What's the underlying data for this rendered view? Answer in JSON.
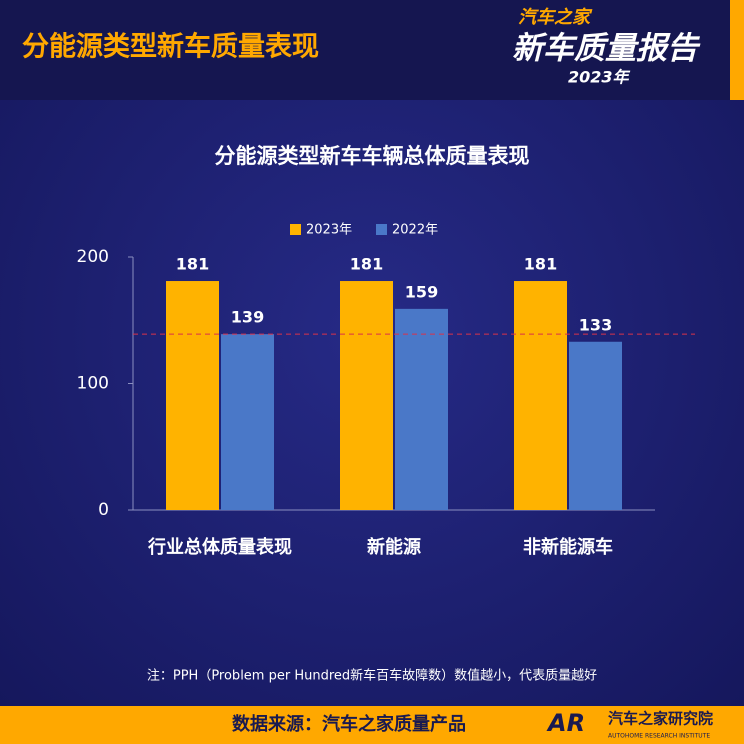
{
  "header": {
    "title": "分能源类型新车质量表现",
    "logo": {
      "brand": "汽车之家",
      "name": "新车质量报告",
      "year": "2023年"
    }
  },
  "chart_data": {
    "type": "bar",
    "title": "分能源类型新车车辆总体质量表现",
    "categories": [
      "行业总体质量表现",
      "新能源",
      "非新能源车"
    ],
    "series": [
      {
        "name": "2023年",
        "color": "#ffb300",
        "values": [
          181,
          181,
          181
        ]
      },
      {
        "name": "2022年",
        "color": "#4a78c8",
        "values": [
          139,
          159,
          133
        ]
      }
    ],
    "ylim": [
      0,
      200
    ],
    "yticks": [
      0,
      100,
      200
    ],
    "reference_line": {
      "value": 139,
      "color": "#d9334a"
    },
    "legend": "top"
  },
  "footnote": "注：PPH（Problem per Hundred新车百车故障数）数值越小，代表质量越好",
  "footer": {
    "source": "数据来源：汽车之家质量产品",
    "institute": {
      "mark": "AR",
      "name": "汽车之家研究院",
      "english": "AUTOHOME RESEARCH INSTITUTE"
    }
  }
}
